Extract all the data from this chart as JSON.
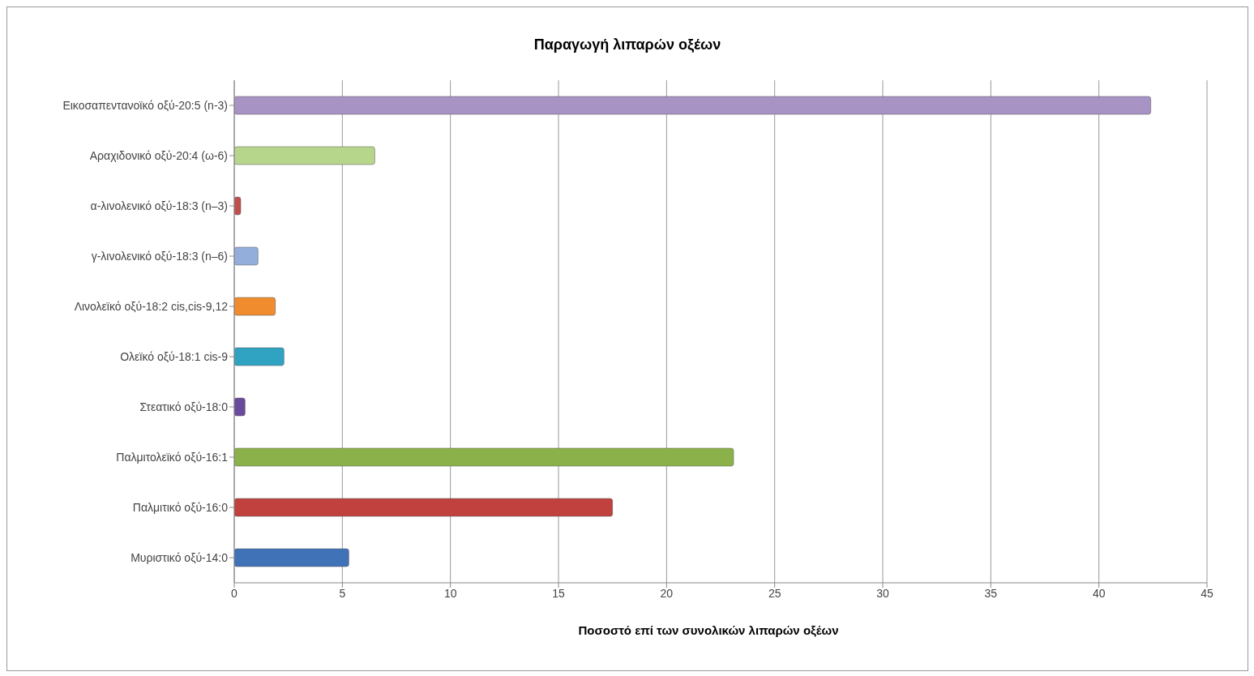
{
  "chart_data": {
    "type": "bar",
    "orientation": "horizontal",
    "title": "Παραγωγή λιπαρών οξέων",
    "xlabel": "Ποσοστό επί των συνολικών λιπαρών οξέων",
    "categories": [
      "Εικοσαπεντανοϊκό οξύ-20:5 (n-3)",
      "Αραχιδονικό οξύ-20:4 (ω-6)",
      "α-λινολενικό οξύ-18:3 (n–3)",
      "γ-λινολενικό οξύ-18:3 (n–6)",
      "Λινολεϊκό οξύ-18:2 cis,cis-9,12",
      "Ολεϊκό οξύ-18:1 cis-9",
      "Στεατικό οξύ-18:0",
      "Παλμιτολεϊκό οξύ-16:1",
      "Παλμιτικό οξύ-16:0",
      "Μυριστικό οξύ-14:0"
    ],
    "values": [
      42.4,
      6.5,
      0.3,
      1.1,
      1.9,
      2.3,
      0.5,
      23.1,
      17.5,
      5.3
    ],
    "colors": [
      "#a793c4",
      "#b6d68c",
      "#c0504d",
      "#94aedc",
      "#f08c2e",
      "#31a3c2",
      "#6a4a9c",
      "#8bb24a",
      "#c0413d",
      "#3f72b6"
    ],
    "xlim": [
      0,
      45
    ],
    "xticks": [
      0,
      5,
      10,
      15,
      20,
      25,
      30,
      35,
      40,
      45
    ],
    "grid": "x",
    "legend": false
  }
}
